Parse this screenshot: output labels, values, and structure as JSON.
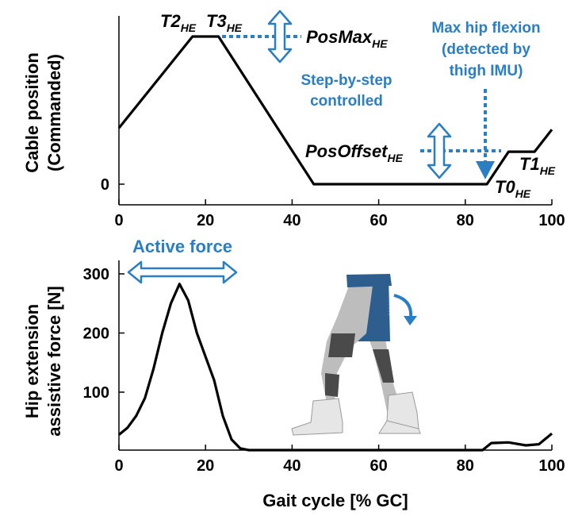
{
  "colors": {
    "line": "#000000",
    "accent": "#2a7ec5",
    "suit": "#2d5e8e",
    "boot": "#e6e6e6",
    "frame": "#4a4a4a"
  },
  "chart_data": [
    {
      "type": "line",
      "ylabel": [
        "Cable position",
        "(Commanded)"
      ],
      "xlim": [
        0,
        100
      ],
      "ylim": [
        -0.12,
        1.05
      ],
      "x_ticks": [
        "0",
        "20",
        "40",
        "60",
        "80",
        "100"
      ],
      "y_ticks": [
        "0"
      ],
      "series": [
        {
          "x": [
            0,
            17,
            23,
            45,
            85,
            90,
            96,
            100
          ],
          "y": [
            0.38,
            1.0,
            1.0,
            0.0,
            0.0,
            0.22,
            0.22,
            0.37
          ]
        }
      ],
      "annotations": {
        "t2": "T2",
        "t2_sub": "HE",
        "t3": "T3",
        "t3_sub": "HE",
        "posmax": "PosMax",
        "posmax_sub": "HE",
        "posoffset": "PosOffset",
        "posoffset_sub": "HE",
        "t1": "T1",
        "t1_sub": "HE",
        "t0": "T0",
        "t0_sub": "HE",
        "step_by_step": [
          "Step-by-step",
          "controlled"
        ],
        "max_hip_flexion": [
          "Max hip flexion",
          "(detected by",
          "thigh IMU)"
        ]
      }
    },
    {
      "type": "line",
      "xlabel": "Gait cycle [% GC]",
      "ylabel": [
        "Hip extension",
        "assistive force [N]"
      ],
      "xlim": [
        0,
        100
      ],
      "ylim": [
        0,
        320
      ],
      "x_ticks": [
        "0",
        "20",
        "40",
        "60",
        "80",
        "100"
      ],
      "y_ticks": [
        "100",
        "200",
        "300"
      ],
      "series": [
        {
          "x": [
            0,
            2,
            4,
            6,
            8,
            10,
            12,
            14,
            16,
            18,
            20,
            22,
            24,
            26,
            28,
            30,
            40,
            60,
            80,
            84,
            86,
            90,
            94,
            97,
            100
          ],
          "y": [
            28,
            40,
            60,
            90,
            140,
            200,
            250,
            283,
            255,
            200,
            160,
            120,
            60,
            20,
            5,
            2,
            2,
            2,
            2,
            2,
            14,
            15,
            10,
            12,
            30
          ]
        }
      ],
      "annotations": {
        "active_force": "Active force"
      }
    }
  ]
}
